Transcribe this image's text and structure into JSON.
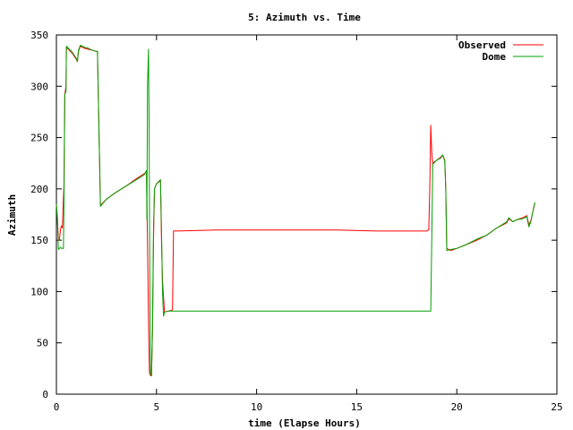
{
  "chart_data": {
    "type": "line",
    "title": "5: Azimuth vs. Time",
    "xlabel": "time (Elapse Hours)",
    "ylabel": "Azimuth",
    "xlim": [
      0,
      25
    ],
    "ylim": [
      0,
      350
    ],
    "xticks": [
      0,
      5,
      10,
      15,
      20,
      25
    ],
    "yticks": [
      0,
      50,
      100,
      150,
      200,
      250,
      300,
      350
    ],
    "grid": false,
    "legend_position": "top-right",
    "series": [
      {
        "name": "Observed",
        "color": "#ff0000",
        "points": [
          [
            0.0,
            185
          ],
          [
            0.05,
            172
          ],
          [
            0.1,
            150
          ],
          [
            0.15,
            150
          ],
          [
            0.2,
            160
          ],
          [
            0.25,
            164
          ],
          [
            0.3,
            162
          ],
          [
            0.35,
            190
          ],
          [
            0.38,
            205
          ],
          [
            0.42,
            292
          ],
          [
            0.48,
            300
          ],
          [
            0.5,
            338
          ],
          [
            0.6,
            336
          ],
          [
            0.8,
            332
          ],
          [
            1.0,
            326
          ],
          [
            1.05,
            324
          ],
          [
            1.1,
            334
          ],
          [
            1.2,
            339
          ],
          [
            1.4,
            337
          ],
          [
            1.6,
            336
          ],
          [
            1.8,
            335
          ],
          [
            2.0,
            334
          ],
          [
            2.05,
            334
          ],
          [
            2.2,
            184
          ],
          [
            2.5,
            190
          ],
          [
            3.0,
            197
          ],
          [
            3.5,
            203
          ],
          [
            4.0,
            210
          ],
          [
            4.4,
            215
          ],
          [
            4.5,
            217
          ],
          [
            4.55,
            150
          ],
          [
            4.6,
            70
          ],
          [
            4.65,
            21
          ],
          [
            4.7,
            18
          ],
          [
            4.75,
            18
          ],
          [
            4.8,
            60
          ],
          [
            4.85,
            150
          ],
          [
            4.9,
            200
          ],
          [
            5.0,
            205
          ],
          [
            5.2,
            208
          ],
          [
            5.25,
            150
          ],
          [
            5.3,
            110
          ],
          [
            5.4,
            80
          ],
          [
            5.6,
            81
          ],
          [
            5.8,
            82
          ],
          [
            5.85,
            159
          ],
          [
            6.0,
            159
          ],
          [
            8.0,
            160
          ],
          [
            10.0,
            160
          ],
          [
            12.0,
            160
          ],
          [
            14.0,
            160
          ],
          [
            16.0,
            159
          ],
          [
            18.0,
            159
          ],
          [
            18.5,
            159
          ],
          [
            18.6,
            160
          ],
          [
            18.65,
            200
          ],
          [
            18.7,
            262
          ],
          [
            18.75,
            235
          ],
          [
            18.8,
            225
          ],
          [
            19.0,
            228
          ],
          [
            19.2,
            231
          ],
          [
            19.3,
            233
          ],
          [
            19.4,
            228
          ],
          [
            19.45,
            200
          ],
          [
            19.5,
            142
          ],
          [
            19.7,
            140
          ],
          [
            20.0,
            142
          ],
          [
            20.5,
            146
          ],
          [
            21.0,
            150
          ],
          [
            21.5,
            155
          ],
          [
            22.0,
            162
          ],
          [
            22.5,
            167
          ],
          [
            22.6,
            171
          ],
          [
            22.8,
            168
          ],
          [
            23.0,
            170
          ],
          [
            23.3,
            172
          ],
          [
            23.5,
            174
          ],
          [
            23.6,
            165
          ],
          [
            23.7,
            169
          ],
          [
            23.8,
            178
          ],
          [
            23.9,
            186
          ]
        ]
      },
      {
        "name": "Dome",
        "color": "#00a000",
        "points": [
          [
            0.0,
            185
          ],
          [
            0.05,
            170
          ],
          [
            0.1,
            141
          ],
          [
            0.2,
            143
          ],
          [
            0.25,
            142
          ],
          [
            0.3,
            142
          ],
          [
            0.35,
            142
          ],
          [
            0.38,
            190
          ],
          [
            0.42,
            292
          ],
          [
            0.48,
            295
          ],
          [
            0.5,
            339
          ],
          [
            0.6,
            337
          ],
          [
            0.8,
            333
          ],
          [
            1.0,
            327
          ],
          [
            1.05,
            324
          ],
          [
            1.1,
            335
          ],
          [
            1.2,
            340
          ],
          [
            1.4,
            338
          ],
          [
            1.6,
            337
          ],
          [
            1.8,
            335
          ],
          [
            2.0,
            334
          ],
          [
            2.05,
            334
          ],
          [
            2.2,
            183
          ],
          [
            2.5,
            190
          ],
          [
            3.0,
            197
          ],
          [
            3.5,
            203
          ],
          [
            4.0,
            209
          ],
          [
            4.4,
            214
          ],
          [
            4.5,
            218
          ],
          [
            4.52,
            170
          ],
          [
            4.55,
            300
          ],
          [
            4.6,
            336
          ],
          [
            4.63,
            260
          ],
          [
            4.67,
            100
          ],
          [
            4.7,
            20
          ],
          [
            4.75,
            18
          ],
          [
            4.8,
            65
          ],
          [
            4.85,
            160
          ],
          [
            4.9,
            200
          ],
          [
            5.0,
            205
          ],
          [
            5.2,
            209
          ],
          [
            5.25,
            160
          ],
          [
            5.3,
            100
          ],
          [
            5.35,
            76
          ],
          [
            5.4,
            80
          ],
          [
            5.6,
            81
          ],
          [
            5.8,
            81
          ],
          [
            6.0,
            81
          ],
          [
            8.0,
            81
          ],
          [
            10.0,
            81
          ],
          [
            12.0,
            81
          ],
          [
            14.0,
            81
          ],
          [
            16.0,
            81
          ],
          [
            18.0,
            81
          ],
          [
            18.7,
            81
          ],
          [
            18.75,
            150
          ],
          [
            18.8,
            224
          ],
          [
            19.0,
            228
          ],
          [
            19.2,
            230
          ],
          [
            19.3,
            233
          ],
          [
            19.4,
            227
          ],
          [
            19.45,
            200
          ],
          [
            19.5,
            140
          ],
          [
            19.7,
            141
          ],
          [
            20.0,
            142
          ],
          [
            20.5,
            146
          ],
          [
            21.0,
            151
          ],
          [
            21.5,
            155
          ],
          [
            22.0,
            162
          ],
          [
            22.5,
            168
          ],
          [
            22.6,
            172
          ],
          [
            22.8,
            168
          ],
          [
            23.0,
            170
          ],
          [
            23.3,
            171
          ],
          [
            23.5,
            173
          ],
          [
            23.6,
            163
          ],
          [
            23.7,
            168
          ],
          [
            23.8,
            178
          ],
          [
            23.9,
            187
          ]
        ]
      }
    ]
  }
}
